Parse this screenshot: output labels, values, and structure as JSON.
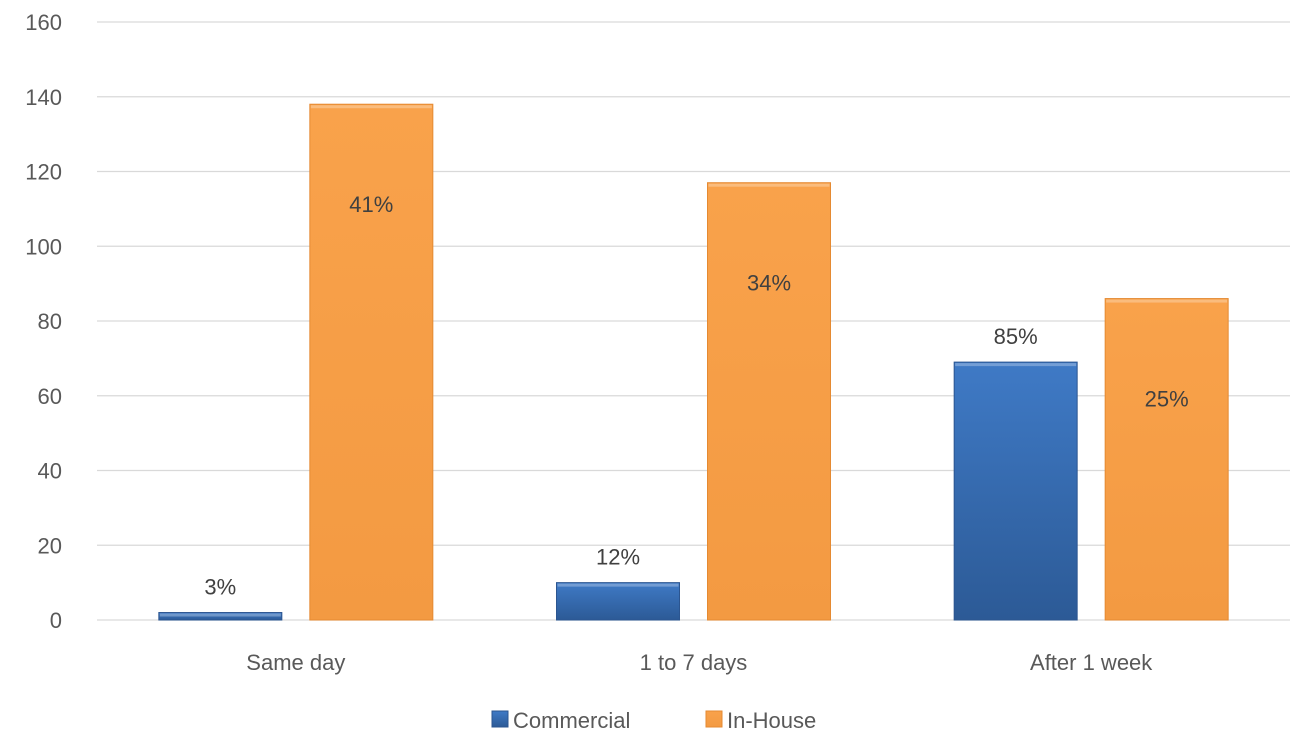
{
  "chart_data": {
    "type": "bar",
    "categories": [
      "Same day",
      "1 to 7 days",
      "After 1 week"
    ],
    "series": [
      {
        "name": "Commercial",
        "color": "#3a6fb5",
        "values": [
          2,
          10,
          69
        ],
        "labels": [
          "3%",
          "12%",
          "85%"
        ],
        "label_position": "above"
      },
      {
        "name": "In-House",
        "color": "#f7a04d",
        "values": [
          138,
          117,
          86
        ],
        "labels": [
          "41%",
          "34%",
          "25%"
        ],
        "label_position": "inside"
      }
    ],
    "ylim": [
      0,
      160
    ],
    "yticks": [
      0,
      20,
      40,
      60,
      80,
      100,
      120,
      140,
      160
    ],
    "ytick_labels": [
      "0",
      "20",
      "40",
      "60",
      "80",
      "100",
      "120",
      "140",
      "160"
    ],
    "grid": true,
    "legend_position": "bottom-center",
    "title": "",
    "xlabel": "",
    "ylabel": ""
  }
}
